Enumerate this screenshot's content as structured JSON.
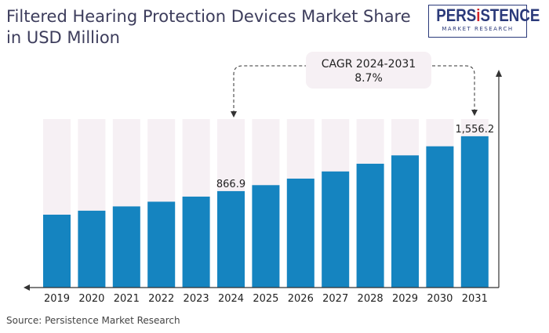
{
  "title": "Filtered Hearing Protection Devices Market Share in USD Million",
  "logo": {
    "main": "PERSISTENCE",
    "sub": "MARKET RESEARCH"
  },
  "source": "Source: Persistence Market Research",
  "colors": {
    "bar": "#1584c0",
    "bg": "#f6f0f4",
    "logo": "#2b3a7a",
    "accent": "#d2232a"
  },
  "chart_data": {
    "type": "bar",
    "title": "Filtered Hearing Protection Devices Market Share in USD Million",
    "categories": [
      "2019",
      "2020",
      "2021",
      "2022",
      "2023",
      "2024",
      "2025",
      "2026",
      "2027",
      "2028",
      "2029",
      "2030",
      "2031"
    ],
    "values": [
      571,
      621,
      675,
      734,
      798,
      866.9,
      942,
      1024,
      1114,
      1211,
      1316,
      1430,
      1556.2
    ],
    "data_labels": {
      "2024": "866.9",
      "2031": "1,556.2"
    },
    "annotation": {
      "line1": "CAGR 2024-2031",
      "line2": "8.7%"
    },
    "xlabel": "",
    "ylabel": "",
    "ylim": [
      -345,
      1771
    ],
    "grid": false
  }
}
